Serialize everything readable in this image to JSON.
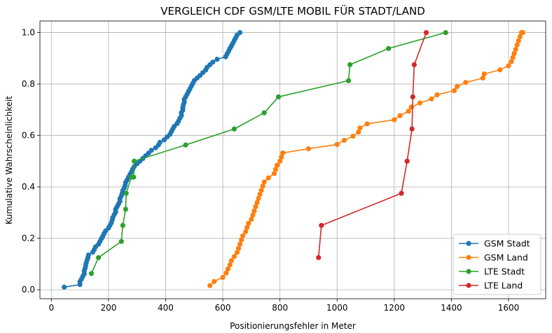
{
  "chart_data": {
    "type": "line",
    "title": "VERGLEICH CDF GSM/LTE MOBIL FÜR STADT/LAND",
    "xlabel": "Positionierungsfehler in Meter",
    "ylabel": "Kumulative Wahrscheinlichkeit",
    "xlim": [
      -40,
      1730
    ],
    "ylim": [
      -0.035,
      1.045
    ],
    "xticks": [
      0,
      200,
      400,
      600,
      800,
      1000,
      1200,
      1400,
      1600
    ],
    "yticks": [
      0.0,
      0.2,
      0.4,
      0.6,
      0.8,
      1.0
    ],
    "xtick_labels": [
      "0",
      "200",
      "400",
      "600",
      "800",
      "1000",
      "1200",
      "1400",
      "1600"
    ],
    "ytick_labels": [
      "0.0",
      "0.2",
      "0.4",
      "0.6",
      "0.8",
      "1.0"
    ],
    "grid": true,
    "legend_position": "lower-right",
    "series": [
      {
        "name": "GSM Stadt",
        "color": "#1f77b4",
        "x": [
          45,
          100,
          100,
          105,
          110,
          115,
          115,
          118,
          120,
          122,
          125,
          128,
          130,
          145,
          150,
          155,
          165,
          170,
          175,
          180,
          185,
          190,
          200,
          205,
          210,
          213,
          215,
          220,
          225,
          225,
          230,
          235,
          240,
          240,
          245,
          248,
          250,
          255,
          258,
          260,
          265,
          270,
          275,
          280,
          285,
          290,
          300,
          310,
          320,
          330,
          340,
          350,
          365,
          375,
          380,
          395,
          405,
          415,
          420,
          425,
          430,
          440,
          445,
          450,
          455,
          455,
          460,
          460,
          462,
          465,
          465,
          470,
          475,
          480,
          485,
          490,
          495,
          500,
          510,
          520,
          530,
          540,
          545,
          555,
          565,
          580,
          610,
          615,
          620,
          625,
          630,
          635,
          640,
          645,
          650,
          660
        ],
        "y": [
          0.01,
          0.02,
          0.031,
          0.041,
          0.052,
          0.062,
          0.073,
          0.083,
          0.094,
          0.104,
          0.115,
          0.125,
          0.135,
          0.146,
          0.156,
          0.167,
          0.177,
          0.188,
          0.198,
          0.208,
          0.219,
          0.229,
          0.24,
          0.25,
          0.26,
          0.271,
          0.281,
          0.292,
          0.302,
          0.313,
          0.323,
          0.333,
          0.344,
          0.354,
          0.365,
          0.375,
          0.385,
          0.396,
          0.406,
          0.417,
          0.427,
          0.438,
          0.448,
          0.458,
          0.469,
          0.479,
          0.49,
          0.5,
          0.51,
          0.521,
          0.531,
          0.542,
          0.552,
          0.563,
          0.573,
          0.583,
          0.594,
          0.604,
          0.615,
          0.625,
          0.635,
          0.646,
          0.656,
          0.667,
          0.677,
          0.688,
          0.698,
          0.708,
          0.719,
          0.729,
          0.74,
          0.75,
          0.76,
          0.771,
          0.781,
          0.792,
          0.802,
          0.813,
          0.823,
          0.833,
          0.844,
          0.854,
          0.865,
          0.875,
          0.885,
          0.896,
          0.906,
          0.917,
          0.927,
          0.938,
          0.948,
          0.958,
          0.969,
          0.979,
          0.99,
          1.0
        ]
      },
      {
        "name": "GSM Land",
        "color": "#ff7f0e",
        "x": [
          555,
          570,
          600,
          612,
          618,
          625,
          630,
          640,
          650,
          655,
          660,
          665,
          670,
          680,
          685,
          690,
          700,
          705,
          710,
          715,
          720,
          725,
          730,
          735,
          740,
          745,
          760,
          780,
          785,
          790,
          800,
          805,
          810,
          900,
          1000,
          1025,
          1055,
          1075,
          1080,
          1105,
          1200,
          1220,
          1250,
          1260,
          1290,
          1330,
          1350,
          1410,
          1420,
          1450,
          1510,
          1515,
          1570,
          1600,
          1610,
          1615,
          1620,
          1625,
          1630,
          1635,
          1640,
          1645,
          1650
        ],
        "y": [
          0.016,
          0.032,
          0.048,
          0.065,
          0.081,
          0.097,
          0.113,
          0.129,
          0.145,
          0.161,
          0.177,
          0.194,
          0.21,
          0.226,
          0.242,
          0.258,
          0.274,
          0.29,
          0.306,
          0.323,
          0.339,
          0.355,
          0.371,
          0.387,
          0.403,
          0.419,
          0.435,
          0.452,
          0.468,
          0.484,
          0.5,
          0.516,
          0.532,
          0.548,
          0.565,
          0.581,
          0.597,
          0.613,
          0.629,
          0.645,
          0.661,
          0.677,
          0.694,
          0.71,
          0.726,
          0.742,
          0.758,
          0.774,
          0.79,
          0.806,
          0.823,
          0.839,
          0.855,
          0.871,
          0.887,
          0.903,
          0.919,
          0.935,
          0.952,
          0.968,
          0.984,
          1.0,
          1.0
        ]
      },
      {
        "name": "LTE Stadt",
        "color": "#2ca02c",
        "x": [
          140,
          165,
          245,
          250,
          260,
          262,
          280,
          288,
          290,
          470,
          640,
          745,
          795,
          1040,
          1045,
          1180,
          1380
        ],
        "y": [
          0.063,
          0.125,
          0.188,
          0.25,
          0.313,
          0.375,
          0.438,
          0.438,
          0.5,
          0.563,
          0.625,
          0.688,
          0.75,
          0.813,
          0.875,
          0.938,
          1.0
        ]
      },
      {
        "name": "LTE Land",
        "color": "#d62728",
        "x": [
          935,
          945,
          1225,
          1245,
          1262,
          1265,
          1270,
          1312
        ],
        "y": [
          0.125,
          0.25,
          0.375,
          0.5,
          0.625,
          0.75,
          0.875,
          1.0
        ]
      }
    ]
  }
}
